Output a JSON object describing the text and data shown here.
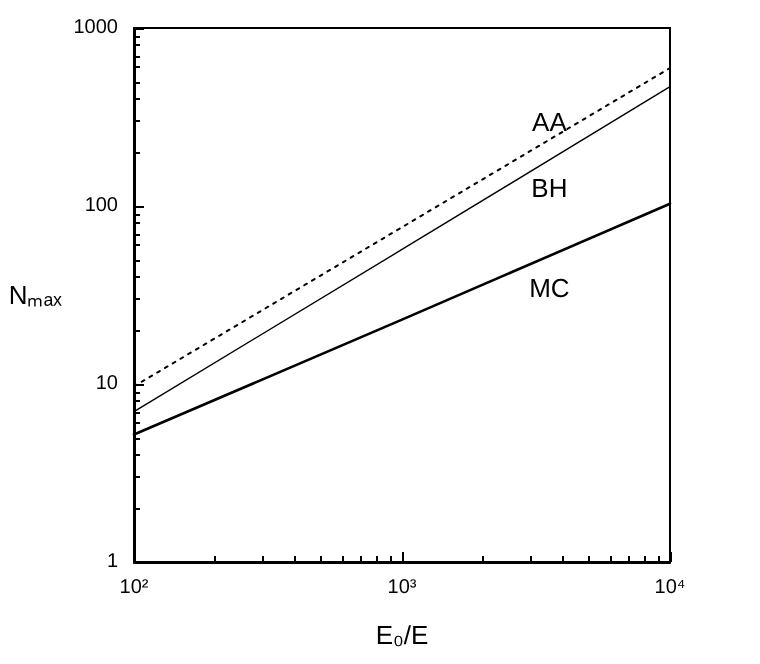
{
  "chart_data": {
    "type": "line",
    "xlabel": "E₀/E",
    "ylabel": "Nₘₐₓ",
    "log": "xy",
    "grid": false,
    "marker": "none",
    "x": [
      100,
      1000,
      10000
    ],
    "series": [
      {
        "name": "AA",
        "color": "#000000",
        "line_style": "dotted",
        "values": [
          9.7,
          76,
          596
        ]
      },
      {
        "name": "BH",
        "color": "#000000",
        "line_style": "solid",
        "values": [
          7.0,
          57,
          468
        ]
      },
      {
        "name": "MC",
        "color": "#000000",
        "line_style": "solid",
        "values": [
          5.2,
          23,
          103
        ]
      }
    ],
    "xlim": [
      100,
      10000
    ],
    "xticks": [
      {
        "value": 100,
        "label": "10²"
      },
      {
        "value": 1000,
        "label": "10³"
      },
      {
        "value": 10000,
        "label": "10⁴"
      }
    ],
    "ylim": [
      1,
      1000
    ],
    "yticks": [
      1,
      10,
      100,
      1000
    ]
  }
}
